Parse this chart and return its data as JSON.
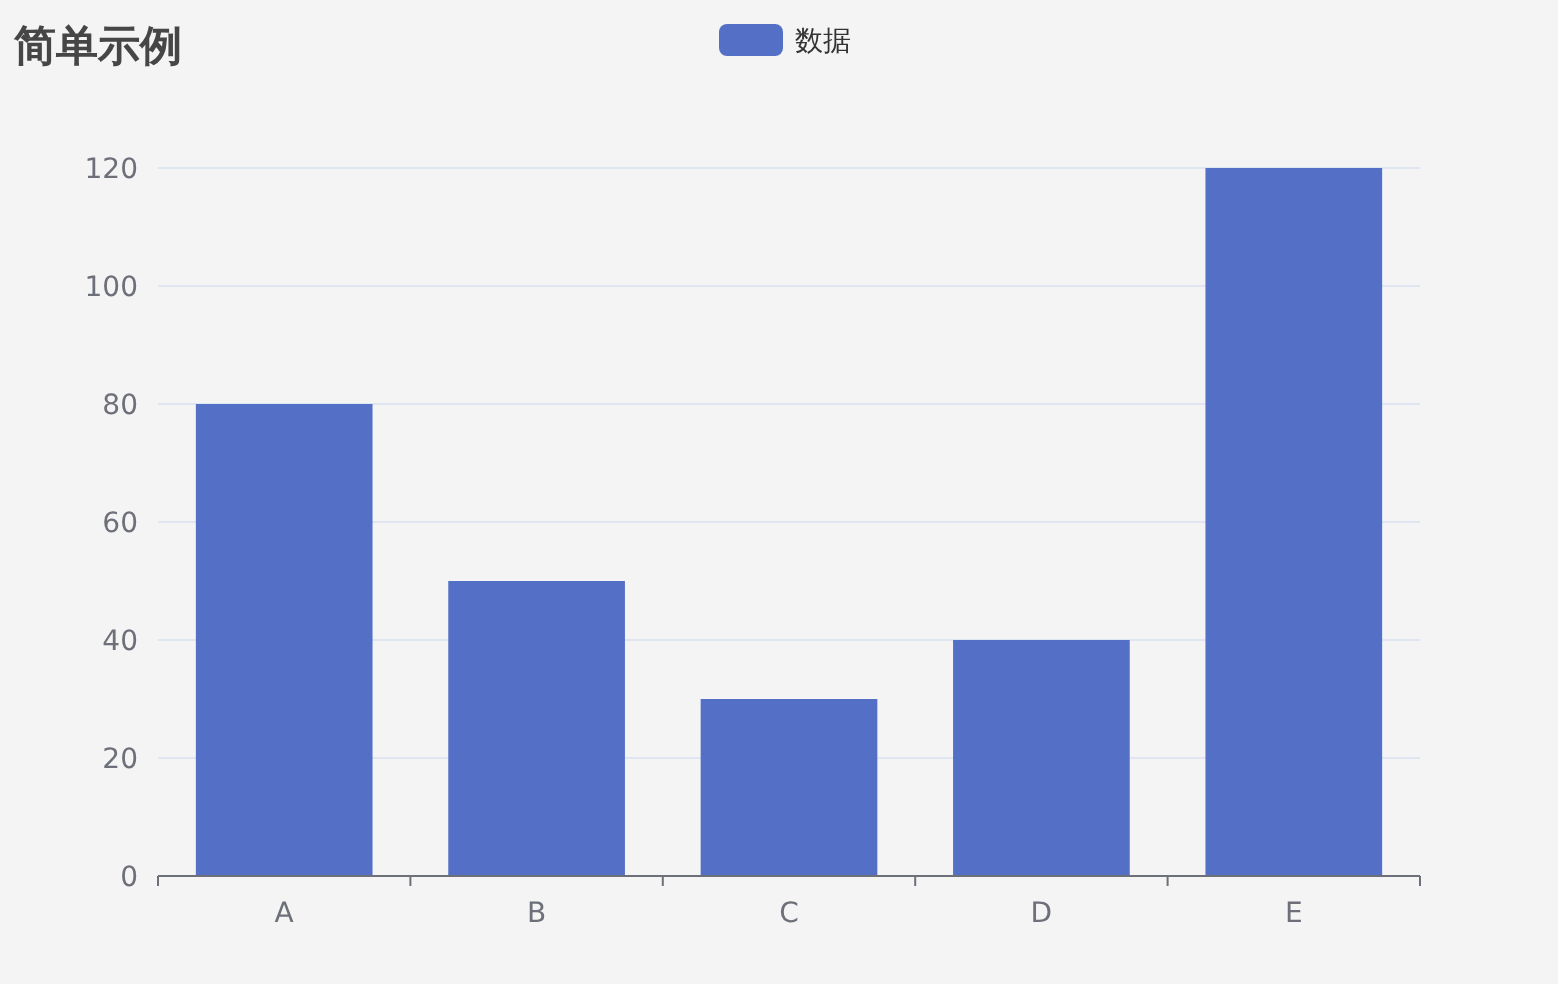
{
  "chart_data": {
    "type": "bar",
    "title": "简单示例",
    "categories": [
      "A",
      "B",
      "C",
      "D",
      "E"
    ],
    "series": [
      {
        "name": "数据",
        "color": "#5470c6",
        "values": [
          80,
          50,
          30,
          40,
          120
        ]
      }
    ],
    "ylim": [
      0,
      120
    ],
    "yticks": [
      0,
      20,
      40,
      60,
      80,
      100,
      120
    ],
    "grid": "y",
    "legend": "top"
  }
}
